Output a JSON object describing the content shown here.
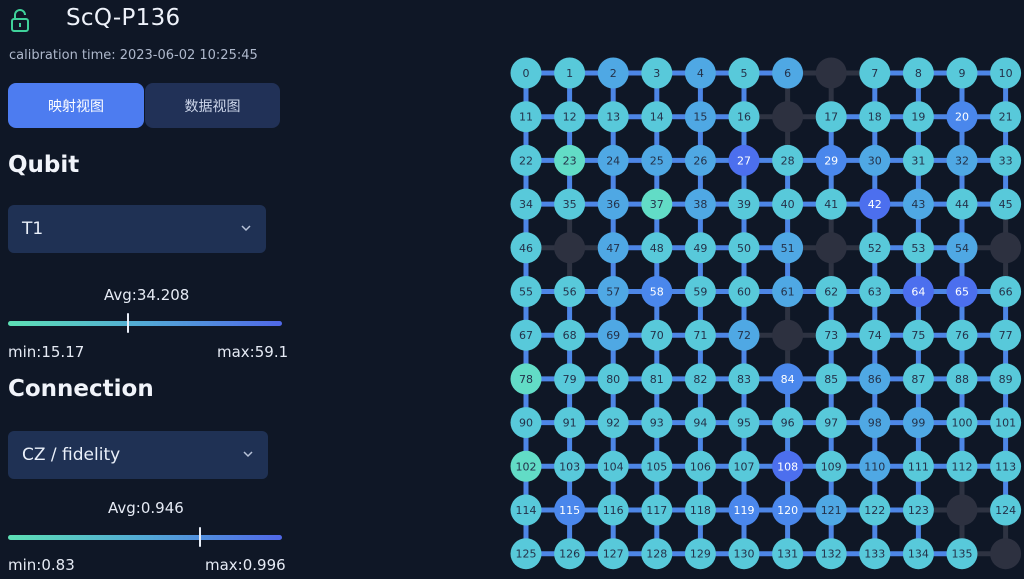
{
  "header": {
    "title": "ScQ-P136",
    "calibration_label": "calibration time:",
    "calibration_time": "2023-06-02 10:25:45"
  },
  "tabs": [
    {
      "label": "映射视图",
      "active": true
    },
    {
      "label": "数据视图",
      "active": false
    }
  ],
  "qubit_section": {
    "title": "Qubit",
    "selected": "T1",
    "avg_label": "Avg:34.208",
    "min_label": "min:15.17",
    "max_label": "max:59.1",
    "avg_fraction": 0.435
  },
  "connection_section": {
    "title": "Connection",
    "selected": "CZ / fidelity",
    "avg_label": "Avg:0.946",
    "min_label": "min:0.83",
    "max_label": "max:0.996",
    "avg_fraction": 0.697
  },
  "chip": {
    "cols": 12,
    "rows": 12,
    "missing_cells": [
      [
        0,
        7
      ],
      [
        1,
        6
      ],
      [
        4,
        1
      ],
      [
        4,
        7
      ],
      [
        4,
        11
      ],
      [
        6,
        6
      ],
      [
        10,
        10
      ],
      [
        11,
        11
      ]
    ],
    "colors": {
      "c0": "#62dcc6",
      "c1": "#58c9da",
      "c2": "#4fa8e4",
      "c3": "#4a87ec",
      "c4": "#4c6fee",
      "missing": "#2d3140",
      "link": "#4d86e6",
      "link_off": "#2e3342",
      "text_dark": "#24324a",
      "text_light": "#ffffff"
    },
    "qubit_levels": {
      "0": 1,
      "1": 1,
      "2": 2,
      "3": 1,
      "4": 2,
      "5": 1,
      "6": 2,
      "7": 1,
      "8": 1,
      "9": 1,
      "10": 1,
      "11": 1,
      "12": 1,
      "13": 1,
      "14": 1,
      "15": 2,
      "16": 1,
      "17": 1,
      "18": 1,
      "19": 1,
      "20": 3,
      "21": 1,
      "22": 1,
      "23": 0,
      "24": 2,
      "25": 2,
      "26": 2,
      "27": 4,
      "28": 1,
      "29": 3,
      "30": 2,
      "31": 1,
      "32": 2,
      "33": 1,
      "34": 1,
      "35": 1,
      "36": 2,
      "37": 0,
      "38": 2,
      "39": 1,
      "40": 1,
      "41": 1,
      "42": 4,
      "43": 2,
      "44": 1,
      "45": 1,
      "46": 1,
      "47": 2,
      "48": 1,
      "49": 1,
      "50": 1,
      "51": 2,
      "52": 1,
      "53": 1,
      "54": 2,
      "55": 1,
      "56": 1,
      "57": 2,
      "58": 3,
      "59": 1,
      "60": 1,
      "61": 2,
      "62": 1,
      "63": 1,
      "64": 4,
      "65": 4,
      "66": 1,
      "67": 1,
      "68": 1,
      "69": 2,
      "70": 1,
      "71": 1,
      "72": 2,
      "73": 1,
      "74": 1,
      "75": 1,
      "76": 1,
      "77": 1,
      "78": 0,
      "79": 1,
      "80": 1,
      "81": 1,
      "82": 1,
      "83": 1,
      "84": 3,
      "85": 1,
      "86": 2,
      "87": 1,
      "88": 1,
      "89": 1,
      "90": 1,
      "91": 1,
      "92": 1,
      "93": 1,
      "94": 1,
      "95": 1,
      "96": 1,
      "97": 1,
      "98": 2,
      "99": 2,
      "100": 1,
      "101": 1,
      "102": 0,
      "103": 1,
      "104": 1,
      "105": 1,
      "106": 1,
      "107": 1,
      "108": 4,
      "109": 1,
      "110": 2,
      "111": 1,
      "112": 1,
      "113": 1,
      "114": 1,
      "115": 3,
      "116": 1,
      "117": 1,
      "118": 1,
      "119": 3,
      "120": 3,
      "121": 2,
      "122": 1,
      "123": 1,
      "124": 1,
      "125": 1,
      "126": 1,
      "127": 1,
      "128": 1,
      "129": 1,
      "130": 1,
      "131": 1,
      "132": 1,
      "133": 1,
      "134": 1,
      "135": 1
    },
    "disabled_links": [
      [
        5,
        6
      ],
      [
        9,
        10
      ],
      [
        0,
        0
      ]
    ]
  }
}
